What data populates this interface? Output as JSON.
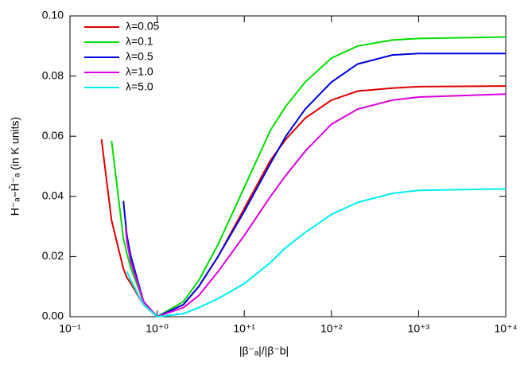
{
  "chart_data": {
    "type": "line",
    "xlabel": "|β⁻ₐ|/|β⁻b|",
    "ylabel": "H⁻ₐ−Ĥ⁻ₐ (in K units)",
    "xscale": "log",
    "xlim": [
      0.1,
      10000
    ],
    "ylim": [
      0,
      0.1
    ],
    "xticks": [
      {
        "value": 0.1,
        "label": "10⁻¹"
      },
      {
        "value": 1,
        "label": "10⁺⁰"
      },
      {
        "value": 10,
        "label": "10⁺¹"
      },
      {
        "value": 100,
        "label": "10⁺²"
      },
      {
        "value": 1000,
        "label": "10⁺³"
      },
      {
        "value": 10000,
        "label": "10⁺⁴"
      }
    ],
    "yticks": [
      {
        "value": 0,
        "label": "0.00"
      },
      0.02,
      0.04,
      0.06,
      0.08,
      {
        "value": 0.1,
        "label": "0.10"
      }
    ],
    "legend": "upper left",
    "x": [
      0.23,
      0.3,
      0.41,
      0.435,
      0.45,
      0.5,
      0.7,
      1,
      2,
      3,
      5,
      10,
      20,
      30,
      50,
      100,
      200,
      500,
      1000,
      10000
    ],
    "series": [
      {
        "name": "λ=0.05",
        "color": "#dd0000",
        "values": [
          0.059,
          0.032,
          0.016,
          0.014,
          0.013,
          0.011,
          0.004,
          0,
          0.004,
          0.01,
          0.02,
          0.036,
          0.052,
          0.059,
          0.066,
          0.072,
          0.075,
          0.076,
          0.0765,
          0.0767
        ]
      },
      {
        "name": "λ=0.1",
        "color": "#00dd00",
        "values": [
          null,
          0.0585,
          0.026,
          0.023,
          0.021,
          0.016,
          0.005,
          0,
          0.005,
          0.012,
          0.024,
          0.043,
          0.062,
          0.07,
          0.078,
          0.086,
          0.09,
          0.092,
          0.0925,
          0.093
        ]
      },
      {
        "name": "λ=0.5",
        "color": "#0000dd",
        "values": [
          null,
          null,
          0.0385,
          0.031,
          0.027,
          0.02,
          0.005,
          0,
          0.004,
          0.01,
          0.02,
          0.035,
          0.051,
          0.06,
          0.069,
          0.078,
          0.084,
          0.087,
          0.0875,
          0.0875
        ]
      },
      {
        "name": "λ=1.0",
        "color": "#dd00dd",
        "values": [
          null,
          null,
          null,
          0.0295,
          0.025,
          0.018,
          0.005,
          0,
          0.003,
          0.007,
          0.015,
          0.027,
          0.04,
          0.047,
          0.055,
          0.064,
          0.069,
          0.072,
          0.073,
          0.074
        ]
      },
      {
        "name": "λ=5.0",
        "color": "#00eeee",
        "values": [
          null,
          null,
          null,
          null,
          0.015,
          0.012,
          0.004,
          0,
          0.001,
          0.003,
          0.006,
          0.011,
          0.018,
          0.023,
          0.028,
          0.034,
          0.038,
          0.041,
          0.042,
          0.0425
        ]
      }
    ]
  }
}
